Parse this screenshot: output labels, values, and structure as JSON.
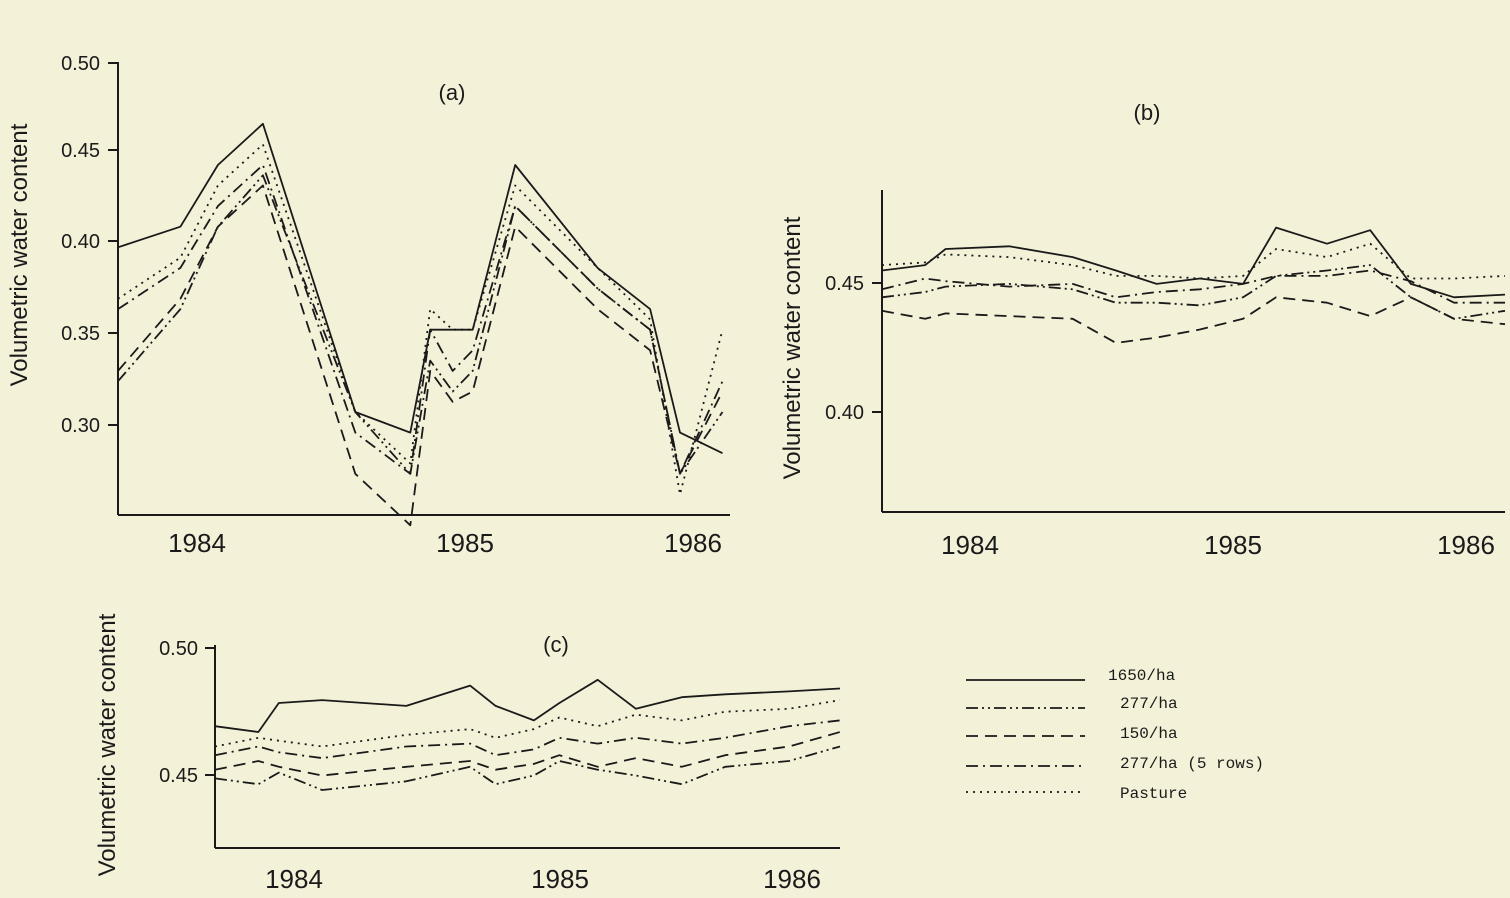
{
  "chart_data": [
    {
      "panel": "(a)",
      "type": "line",
      "ylabel": "Volumetric water content",
      "ylim": [
        0.28,
        0.5
      ],
      "yticks": [
        "0.30",
        "0.35",
        "0.40",
        "0.45",
        "0.50"
      ],
      "xlim": [
        1983.75,
        1986.2
      ],
      "x_tick_labels": [
        "1984",
        "1985",
        "1986"
      ],
      "grid": false,
      "series": [
        {
          "name": "1650/ha",
          "dash": "solid",
          "x": [
            1983.75,
            1984.0,
            1984.15,
            1984.33,
            1984.7,
            1984.92,
            1985.0,
            1985.09,
            1985.17,
            1985.34,
            1985.67,
            1985.88,
            1986.0,
            1986.17
          ],
          "y": [
            0.41,
            0.42,
            0.45,
            0.47,
            0.33,
            0.32,
            0.37,
            0.37,
            0.37,
            0.45,
            0.4,
            0.38,
            0.32,
            0.31
          ]
        },
        {
          "name": "277/ha",
          "dash": "dash-dot-dot",
          "x": [
            1983.75,
            1984.0,
            1984.15,
            1984.33,
            1984.7,
            1984.92,
            1985.0,
            1985.09,
            1985.17,
            1985.34,
            1985.67,
            1985.88,
            1986.0,
            1986.17
          ],
          "y": [
            0.345,
            0.38,
            0.42,
            0.445,
            0.33,
            0.3,
            0.355,
            0.34,
            0.35,
            0.43,
            0.39,
            0.37,
            0.3,
            0.33
          ]
        },
        {
          "name": "150/ha",
          "dash": "dashed",
          "x": [
            1983.75,
            1984.0,
            1984.15,
            1984.33,
            1984.7,
            1984.92,
            1985.0,
            1985.09,
            1985.17,
            1985.34,
            1985.67,
            1985.88,
            1986.0,
            1986.17
          ],
          "y": [
            0.35,
            0.385,
            0.42,
            0.44,
            0.3,
            0.275,
            0.35,
            0.335,
            0.34,
            0.42,
            0.38,
            0.36,
            0.3,
            0.34
          ]
        },
        {
          "name": "277/ha (5 rows)",
          "dash": "dash-dot",
          "x": [
            1983.75,
            1984.0,
            1984.15,
            1984.33,
            1984.7,
            1984.92,
            1985.0,
            1985.09,
            1985.17,
            1985.34,
            1985.67,
            1985.88,
            1986.0,
            1986.17
          ],
          "y": [
            0.38,
            0.4,
            0.43,
            0.45,
            0.32,
            0.3,
            0.37,
            0.35,
            0.36,
            0.43,
            0.39,
            0.37,
            0.3,
            0.345
          ]
        },
        {
          "name": "Pasture",
          "dash": "dotted",
          "x": [
            1983.75,
            1984.0,
            1984.15,
            1984.33,
            1984.7,
            1984.92,
            1985.0,
            1985.09,
            1985.17,
            1985.34,
            1985.67,
            1985.88,
            1986.0,
            1986.17
          ],
          "y": [
            0.385,
            0.405,
            0.44,
            0.46,
            0.33,
            0.305,
            0.38,
            0.37,
            0.37,
            0.44,
            0.4,
            0.375,
            0.29,
            0.37
          ]
        }
      ]
    },
    {
      "panel": "(b)",
      "type": "line",
      "ylabel": "Volumetric water content",
      "ylim": [
        0.36,
        0.48
      ],
      "yticks": [
        "0.40",
        "0.45"
      ],
      "xlim": [
        1983.75,
        1986.2
      ],
      "x_tick_labels": [
        "1984",
        "1985",
        "1986"
      ],
      "grid": false,
      "series": [
        {
          "name": "1650/ha",
          "dash": "solid",
          "x": [
            1983.75,
            1983.92,
            1984.0,
            1984.25,
            1984.5,
            1984.67,
            1984.83,
            1985.0,
            1985.17,
            1985.3,
            1985.5,
            1985.67,
            1985.83,
            1986.0,
            1986.2
          ],
          "y": [
            0.45,
            0.452,
            0.458,
            0.459,
            0.455,
            0.45,
            0.445,
            0.447,
            0.445,
            0.466,
            0.46,
            0.465,
            0.445,
            0.44,
            0.441
          ]
        },
        {
          "name": "277/ha",
          "dash": "dash-dot-dot",
          "x": [
            1983.75,
            1983.92,
            1984.0,
            1984.25,
            1984.5,
            1984.67,
            1984.83,
            1985.0,
            1985.17,
            1985.3,
            1985.5,
            1985.67,
            1985.83,
            1986.0,
            1986.2
          ],
          "y": [
            0.44,
            0.442,
            0.444,
            0.445,
            0.443,
            0.438,
            0.438,
            0.437,
            0.44,
            0.448,
            0.45,
            0.452,
            0.44,
            0.432,
            0.435
          ]
        },
        {
          "name": "150/ha",
          "dash": "dashed",
          "x": [
            1983.75,
            1983.92,
            1984.0,
            1984.25,
            1984.5,
            1984.67,
            1984.83,
            1985.0,
            1985.17,
            1985.3,
            1985.5,
            1985.67,
            1985.83,
            1986.0,
            1986.2
          ],
          "y": [
            0.435,
            0.432,
            0.434,
            0.433,
            0.432,
            0.423,
            0.425,
            0.428,
            0.432,
            0.44,
            0.438,
            0.433,
            0.44,
            0.432,
            0.43
          ]
        },
        {
          "name": "277/ha (5 rows)",
          "dash": "dash-dot",
          "x": [
            1983.75,
            1983.92,
            1984.0,
            1984.25,
            1984.5,
            1984.67,
            1984.83,
            1985.0,
            1985.17,
            1985.3,
            1985.5,
            1985.67,
            1985.83,
            1986.0,
            1986.2
          ],
          "y": [
            0.443,
            0.447,
            0.446,
            0.444,
            0.445,
            0.44,
            0.442,
            0.443,
            0.445,
            0.448,
            0.448,
            0.45,
            0.446,
            0.438,
            0.438
          ]
        },
        {
          "name": "Pasture",
          "dash": "dotted",
          "x": [
            1983.75,
            1983.92,
            1984.0,
            1984.25,
            1984.5,
            1984.67,
            1984.83,
            1985.0,
            1985.17,
            1985.3,
            1985.5,
            1985.67,
            1985.83,
            1986.0,
            1986.2
          ],
          "y": [
            0.452,
            0.453,
            0.456,
            0.455,
            0.452,
            0.448,
            0.448,
            0.447,
            0.448,
            0.458,
            0.455,
            0.46,
            0.447,
            0.447,
            0.448
          ]
        }
      ]
    },
    {
      "panel": "(c)",
      "type": "line",
      "ylabel": "Volumetric water content",
      "ylim": [
        0.43,
        0.5
      ],
      "yticks": [
        "0.45",
        "0.50"
      ],
      "xlim": [
        1983.75,
        1986.2
      ],
      "x_tick_labels": [
        "1984",
        "1985",
        "1986"
      ],
      "grid": false,
      "series": [
        {
          "name": "1650/ha",
          "dash": "solid",
          "x": [
            1983.75,
            1983.92,
            1984.0,
            1984.17,
            1984.5,
            1984.75,
            1984.85,
            1985.0,
            1985.1,
            1985.25,
            1985.4,
            1985.58,
            1985.75,
            1986.0,
            1986.2
          ],
          "y": [
            0.472,
            0.47,
            0.48,
            0.481,
            0.479,
            0.486,
            0.479,
            0.474,
            0.48,
            0.488,
            0.478,
            0.482,
            0.483,
            0.484,
            0.485
          ]
        },
        {
          "name": "277/ha",
          "dash": "dash-dot-dot",
          "x": [
            1983.75,
            1983.92,
            1984.0,
            1984.17,
            1984.5,
            1984.75,
            1984.85,
            1985.0,
            1985.1,
            1985.25,
            1985.4,
            1985.58,
            1985.75,
            1986.0,
            1986.2
          ],
          "y": [
            0.454,
            0.452,
            0.456,
            0.45,
            0.453,
            0.458,
            0.452,
            0.455,
            0.46,
            0.457,
            0.455,
            0.452,
            0.458,
            0.46,
            0.465
          ]
        },
        {
          "name": "150/ha",
          "dash": "dashed",
          "x": [
            1983.75,
            1983.92,
            1984.0,
            1984.17,
            1984.5,
            1984.75,
            1984.85,
            1985.0,
            1985.1,
            1985.25,
            1985.4,
            1985.58,
            1985.75,
            1986.0,
            1986.2
          ],
          "y": [
            0.457,
            0.46,
            0.458,
            0.455,
            0.458,
            0.46,
            0.457,
            0.459,
            0.462,
            0.458,
            0.461,
            0.458,
            0.462,
            0.465,
            0.47
          ]
        },
        {
          "name": "277/ha (5 rows)",
          "dash": "dash-dot",
          "x": [
            1983.75,
            1983.92,
            1984.0,
            1984.17,
            1984.5,
            1984.75,
            1984.85,
            1985.0,
            1985.1,
            1985.25,
            1985.4,
            1985.58,
            1985.75,
            1986.0,
            1986.2
          ],
          "y": [
            0.462,
            0.465,
            0.463,
            0.461,
            0.465,
            0.466,
            0.462,
            0.464,
            0.468,
            0.466,
            0.468,
            0.466,
            0.468,
            0.472,
            0.474
          ]
        },
        {
          "name": "Pasture",
          "dash": "dotted",
          "x": [
            1983.75,
            1983.92,
            1984.0,
            1984.17,
            1984.5,
            1984.75,
            1984.85,
            1985.0,
            1985.1,
            1985.25,
            1985.4,
            1985.58,
            1985.75,
            1986.0,
            1986.2
          ],
          "y": [
            0.465,
            0.468,
            0.467,
            0.465,
            0.469,
            0.471,
            0.468,
            0.471,
            0.475,
            0.472,
            0.476,
            0.474,
            0.477,
            0.478,
            0.481
          ]
        }
      ]
    }
  ],
  "legend": {
    "entries": [
      {
        "label": "1650/ha",
        "dash": "solid"
      },
      {
        "label": "277/ha",
        "dash": "dash-dot-dot"
      },
      {
        "label": "150/ha",
        "dash": "dashed"
      },
      {
        "label": "277/ha (5 rows)",
        "dash": "dash-dot"
      },
      {
        "label": "Pasture",
        "dash": "dotted"
      }
    ],
    "placement": "bottom-right"
  },
  "colors": {
    "paper": "#f4f1d9",
    "ink": "#1a1a1a"
  }
}
